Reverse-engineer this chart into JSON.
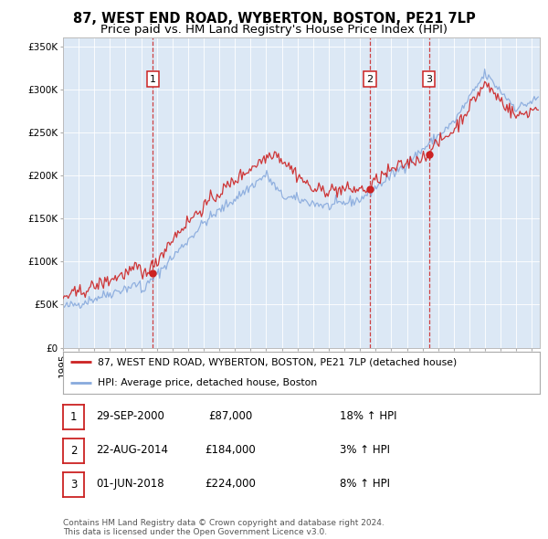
{
  "title": "87, WEST END ROAD, WYBERTON, BOSTON, PE21 7LP",
  "subtitle": "Price paid vs. HM Land Registry's House Price Index (HPI)",
  "title_fontsize": 10.5,
  "subtitle_fontsize": 9.5,
  "plot_bg_color": "#dce8f5",
  "legend_label_red": "87, WEST END ROAD, WYBERTON, BOSTON, PE21 7LP (detached house)",
  "legend_label_blue": "HPI: Average price, detached house, Boston",
  "footer1": "Contains HM Land Registry data © Crown copyright and database right 2024.",
  "footer2": "This data is licensed under the Open Government Licence v3.0.",
  "sales": [
    {
      "num": 1,
      "date": "29-SEP-2000",
      "price": "£87,000",
      "pct": "18% ↑ HPI"
    },
    {
      "num": 2,
      "date": "22-AUG-2014",
      "price": "£184,000",
      "pct": "3% ↑ HPI"
    },
    {
      "num": 3,
      "date": "01-JUN-2018",
      "price": "£224,000",
      "pct": "8% ↑ HPI"
    }
  ],
  "sale_years": [
    2000.75,
    2014.64,
    2018.42
  ],
  "sale_prices": [
    87000,
    184000,
    224000
  ],
  "ylim": [
    0,
    360000
  ],
  "yticks": [
    0,
    50000,
    100000,
    150000,
    200000,
    250000,
    300000,
    350000
  ],
  "red_color": "#cc2222",
  "blue_color": "#88aadd",
  "vline_color": "#cc2222",
  "xlim_start": 1995,
  "xlim_end": 2025.5
}
